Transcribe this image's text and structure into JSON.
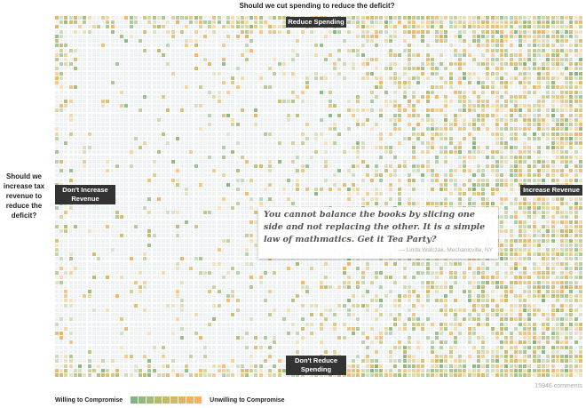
{
  "title": "Should we cut spending to reduce the deficit?",
  "y_question": "Should we increase tax revenue to reduce the deficit?",
  "axis_labels": {
    "top": "Reduce Spending",
    "bottom": "Don't Reduce Spending",
    "left": "Don't Increase Revenue",
    "right": "Increase Revenue"
  },
  "quote": {
    "text": "You cannot balance the books by slicing one side and not  replacing the other.  It is a simple law of mathmatics.  Get it Tea Party?",
    "attribution": "— Linda Walczak, Mechanicville, NY"
  },
  "comment_count": "15946 comments",
  "legend": {
    "left_label": "Willing to Compromise",
    "right_label": "Unwilling to Compromise",
    "colors": [
      "#7fb67e",
      "#92b87a",
      "#a4b974",
      "#b5ba70",
      "#c5b96a",
      "#d4b665",
      "#e0b462",
      "#ecb35e",
      "#fbb25a"
    ]
  },
  "empty_cell_color": "#eef2f3"
}
